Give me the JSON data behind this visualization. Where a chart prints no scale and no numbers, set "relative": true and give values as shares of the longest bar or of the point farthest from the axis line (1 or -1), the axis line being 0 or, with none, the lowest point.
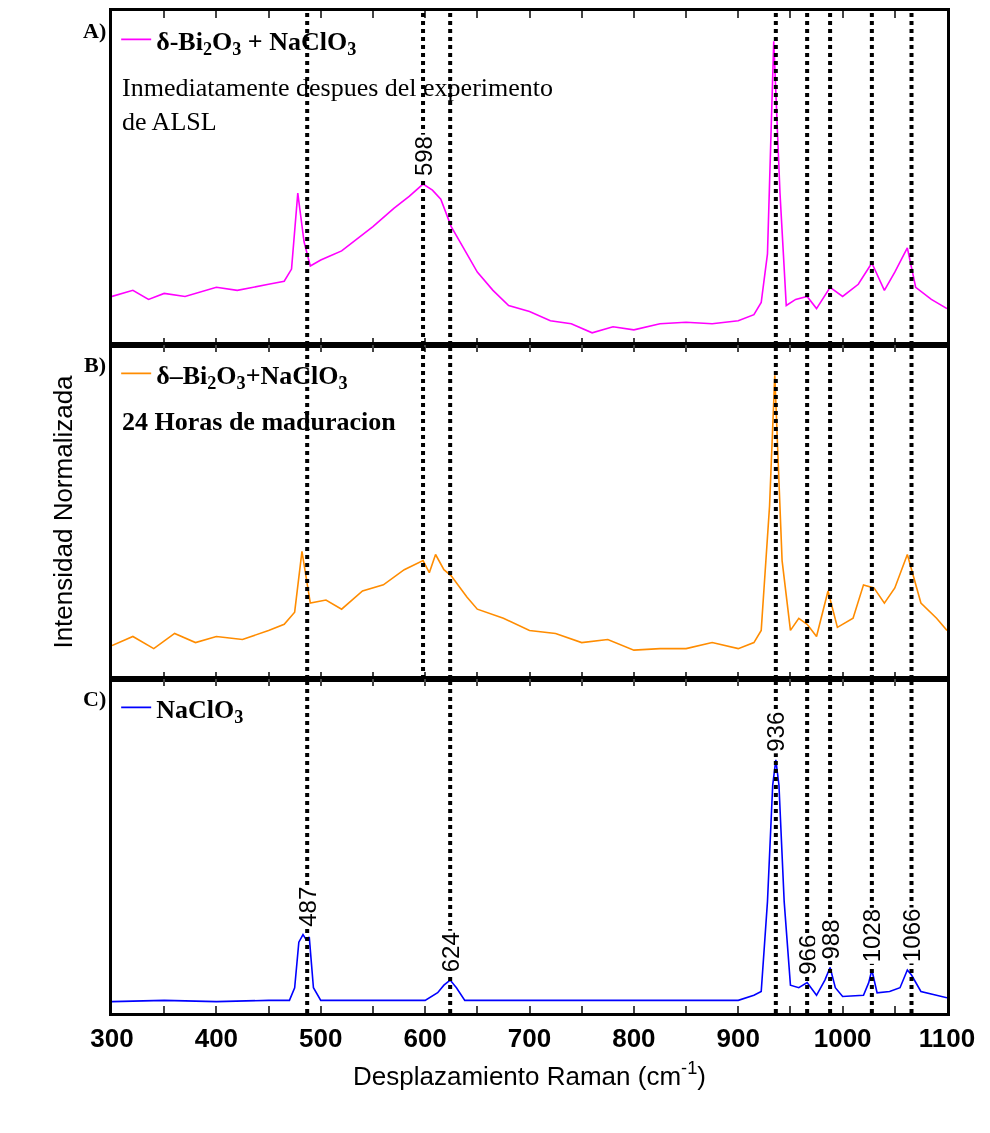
{
  "chart_data": [
    {
      "type": "line",
      "relative": true,
      "legend": "top left",
      "tick_labels": false,
      "marker": "none",
      "line_style": "solid",
      "xlim": [
        300,
        1100
      ],
      "xticks": [
        300,
        {
          "value": 350,
          "label": null
        },
        400,
        {
          "value": 450,
          "label": null
        },
        500,
        {
          "value": 550,
          "label": null
        },
        600,
        {
          "value": 650,
          "label": null
        },
        700,
        {
          "value": 750,
          "label": null
        },
        800,
        {
          "value": 850,
          "label": null
        },
        900,
        {
          "value": 950,
          "label": null
        },
        1000,
        {
          "value": 1050,
          "label": null
        },
        1100
      ],
      "annotations": [
        "A)",
        "Inmediatamente despues del experimento\nde ALSL"
      ],
      "ref_lines": [
        {
          "axis": "x",
          "value": 487,
          "label": null,
          "line_style": "dotted"
        },
        {
          "axis": "x",
          "value": 598,
          "label": "598",
          "line_style": "dotted"
        },
        {
          "axis": "x",
          "value": 624,
          "label": null,
          "line_style": "dotted"
        },
        {
          "axis": "x",
          "value": 936,
          "label": null,
          "line_style": "dotted"
        },
        {
          "axis": "x",
          "value": 966,
          "label": null,
          "line_style": "dotted"
        },
        {
          "axis": "x",
          "value": 988,
          "label": null,
          "line_style": "dotted"
        },
        {
          "axis": "x",
          "value": 1028,
          "label": null,
          "line_style": "dotted"
        },
        {
          "axis": "x",
          "value": 1066,
          "label": null,
          "line_style": "dotted"
        }
      ],
      "series": [
        {
          "name": "δ-Bi$_{2}$O$_{3}$ + NaClO$_{3}$",
          "color": "#ff00ff",
          "x": [
            300,
            320,
            335,
            350,
            370,
            400,
            420,
            450,
            465,
            472,
            478,
            484,
            490,
            500,
            520,
            550,
            570,
            585,
            598,
            607,
            615,
            625,
            640,
            650,
            665,
            680,
            700,
            720,
            740,
            760,
            780,
            800,
            825,
            850,
            875,
            900,
            915,
            922,
            928,
            934,
            940,
            946,
            955,
            966,
            975,
            988,
            1000,
            1015,
            1028,
            1040,
            1050,
            1062,
            1070,
            1085,
            1100
          ],
          "values": [
            0.16,
            0.18,
            0.15,
            0.17,
            0.16,
            0.19,
            0.18,
            0.2,
            0.21,
            0.25,
            0.5,
            0.34,
            0.26,
            0.28,
            0.31,
            0.39,
            0.45,
            0.49,
            0.53,
            0.51,
            0.48,
            0.39,
            0.3,
            0.24,
            0.18,
            0.13,
            0.11,
            0.08,
            0.07,
            0.04,
            0.06,
            0.05,
            0.07,
            0.075,
            0.07,
            0.08,
            0.1,
            0.14,
            0.3,
            1.0,
            0.5,
            0.13,
            0.15,
            0.16,
            0.12,
            0.19,
            0.16,
            0.2,
            0.27,
            0.18,
            0.24,
            0.32,
            0.19,
            0.15,
            0.12
          ]
        }
      ]
    },
    {
      "type": "line",
      "relative": true,
      "legend": "top left",
      "tick_labels": false,
      "marker": "none",
      "line_style": "solid",
      "ylabel": "Intensidad Normalizada",
      "xlim": [
        300,
        1100
      ],
      "xticks": [
        300,
        {
          "value": 350,
          "label": null
        },
        400,
        {
          "value": 450,
          "label": null
        },
        500,
        {
          "value": 550,
          "label": null
        },
        600,
        {
          "value": 650,
          "label": null
        },
        700,
        {
          "value": 750,
          "label": null
        },
        800,
        {
          "value": 850,
          "label": null
        },
        900,
        {
          "value": 950,
          "label": null
        },
        1000,
        {
          "value": 1050,
          "label": null
        },
        1100
      ],
      "annotations": [
        "B)",
        "24 Horas de maduracion"
      ],
      "ref_lines": [
        {
          "axis": "x",
          "value": 487,
          "label": null,
          "line_style": "dotted"
        },
        {
          "axis": "x",
          "value": 598,
          "label": null,
          "line_style": "dotted"
        },
        {
          "axis": "x",
          "value": 624,
          "label": null,
          "line_style": "dotted"
        },
        {
          "axis": "x",
          "value": 936,
          "label": null,
          "line_style": "dotted"
        },
        {
          "axis": "x",
          "value": 966,
          "label": null,
          "line_style": "dotted"
        },
        {
          "axis": "x",
          "value": 988,
          "label": null,
          "line_style": "dotted"
        },
        {
          "axis": "x",
          "value": 1028,
          "label": null,
          "line_style": "dotted"
        },
        {
          "axis": "x",
          "value": 1066,
          "label": null,
          "line_style": "dotted"
        }
      ],
      "series": [
        {
          "name": "δ–Bi$_{2}$O$_{3}$+NaClO$_{3}$",
          "color": "#ff8c00",
          "x": [
            300,
            320,
            340,
            360,
            380,
            400,
            425,
            450,
            465,
            475,
            482,
            490,
            505,
            520,
            540,
            560,
            580,
            598,
            604,
            610,
            618,
            625,
            640,
            650,
            675,
            700,
            725,
            750,
            775,
            800,
            825,
            850,
            875,
            900,
            915,
            922,
            930,
            935,
            942,
            950,
            958,
            966,
            975,
            986,
            995,
            1010,
            1020,
            1030,
            1040,
            1050,
            1062,
            1075,
            1090,
            1100
          ],
          "values": [
            0.11,
            0.14,
            0.1,
            0.15,
            0.12,
            0.14,
            0.13,
            0.16,
            0.18,
            0.22,
            0.42,
            0.25,
            0.26,
            0.23,
            0.29,
            0.31,
            0.36,
            0.39,
            0.35,
            0.41,
            0.36,
            0.34,
            0.27,
            0.23,
            0.2,
            0.16,
            0.15,
            0.12,
            0.13,
            0.095,
            0.1,
            0.1,
            0.12,
            0.1,
            0.12,
            0.16,
            0.57,
            1.0,
            0.39,
            0.16,
            0.2,
            0.18,
            0.14,
            0.29,
            0.17,
            0.2,
            0.31,
            0.3,
            0.25,
            0.3,
            0.41,
            0.25,
            0.2,
            0.16
          ]
        }
      ]
    },
    {
      "type": "line",
      "relative": true,
      "legend": "top left",
      "tick_labels": "x",
      "marker": "none",
      "line_style": "solid",
      "xlabel": "Desplazamiento Raman (cm$^{-1}$)",
      "xlim": [
        300,
        1100
      ],
      "xticks": [
        300,
        {
          "value": 350,
          "label": null
        },
        400,
        {
          "value": 450,
          "label": null
        },
        500,
        {
          "value": 550,
          "label": null
        },
        600,
        {
          "value": 650,
          "label": null
        },
        700,
        {
          "value": 750,
          "label": null
        },
        800,
        {
          "value": 850,
          "label": null
        },
        900,
        {
          "value": 950,
          "label": null
        },
        1000,
        {
          "value": 1050,
          "label": null
        },
        1100
      ],
      "annotations": [
        "C)"
      ],
      "ref_lines": [
        {
          "axis": "x",
          "value": 487,
          "label": "487",
          "line_style": "dotted"
        },
        {
          "axis": "x",
          "value": 624,
          "label": "624",
          "line_style": "dotted"
        },
        {
          "axis": "x",
          "value": 936,
          "label": "936",
          "line_style": "dotted"
        },
        {
          "axis": "x",
          "value": 966,
          "label": "966",
          "line_style": "dotted"
        },
        {
          "axis": "x",
          "value": 988,
          "label": "988",
          "line_style": "dotted"
        },
        {
          "axis": "x",
          "value": 1028,
          "label": "1028",
          "line_style": "dotted"
        },
        {
          "axis": "x",
          "value": 1066,
          "label": "1066",
          "line_style": "dotted"
        }
      ],
      "series": [
        {
          "name": "NaClO$_{3}$",
          "color": "#0000ff",
          "x": [
            300,
            350,
            400,
            450,
            470,
            475,
            479,
            483,
            486,
            489,
            493,
            500,
            550,
            600,
            612,
            618,
            624,
            630,
            638,
            700,
            800,
            900,
            915,
            922,
            928,
            933,
            936,
            939,
            944,
            950,
            958,
            966,
            975,
            983,
            988,
            993,
            1000,
            1020,
            1025,
            1028,
            1033,
            1045,
            1055,
            1062,
            1066,
            1075,
            1100
          ],
          "values": [
            0.045,
            0.05,
            0.045,
            0.05,
            0.05,
            0.1,
            0.28,
            0.31,
            0.29,
            0.3,
            0.1,
            0.05,
            0.05,
            0.05,
            0.08,
            0.11,
            0.13,
            0.1,
            0.05,
            0.05,
            0.05,
            0.05,
            0.07,
            0.085,
            0.44,
            0.9,
            1.0,
            0.9,
            0.44,
            0.11,
            0.1,
            0.12,
            0.07,
            0.13,
            0.18,
            0.1,
            0.065,
            0.07,
            0.12,
            0.17,
            0.08,
            0.085,
            0.1,
            0.17,
            0.15,
            0.085,
            0.06
          ]
        }
      ]
    }
  ]
}
